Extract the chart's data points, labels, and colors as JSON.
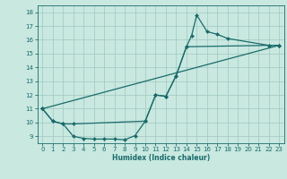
{
  "bg_color": "#c8e8e0",
  "grid_color": "#a0c8c0",
  "line_color": "#1a6b6b",
  "marker_color": "#1a6b6b",
  "xlabel": "Humidex (Indice chaleur)",
  "xlim": [
    -0.5,
    23.5
  ],
  "ylim": [
    8.5,
    18.5
  ],
  "xticks": [
    0,
    1,
    2,
    3,
    4,
    5,
    6,
    7,
    8,
    9,
    10,
    11,
    12,
    13,
    14,
    15,
    16,
    17,
    18,
    19,
    20,
    21,
    22,
    23
  ],
  "yticks": [
    9,
    10,
    11,
    12,
    13,
    14,
    15,
    16,
    17,
    18
  ],
  "line1_x": [
    0,
    1,
    2,
    3,
    10,
    11,
    12,
    13,
    14,
    14.5,
    15,
    16,
    17,
    18,
    22,
    23
  ],
  "line1_y": [
    11,
    10.1,
    9.9,
    9.9,
    10.1,
    12.0,
    11.9,
    13.4,
    15.5,
    16.3,
    17.8,
    16.6,
    16.4,
    16.1,
    15.6,
    15.6
  ],
  "line2_x": [
    0,
    1,
    2,
    3,
    4,
    5,
    6,
    7,
    8,
    9,
    10,
    11,
    12,
    13,
    14,
    22,
    23
  ],
  "line2_y": [
    11,
    10.1,
    9.9,
    9.0,
    8.85,
    8.8,
    8.8,
    8.8,
    8.75,
    9.05,
    10.1,
    12.0,
    11.9,
    13.4,
    15.5,
    15.6,
    15.6
  ],
  "line3_x": [
    0,
    23
  ],
  "line3_y": [
    11,
    15.6
  ]
}
